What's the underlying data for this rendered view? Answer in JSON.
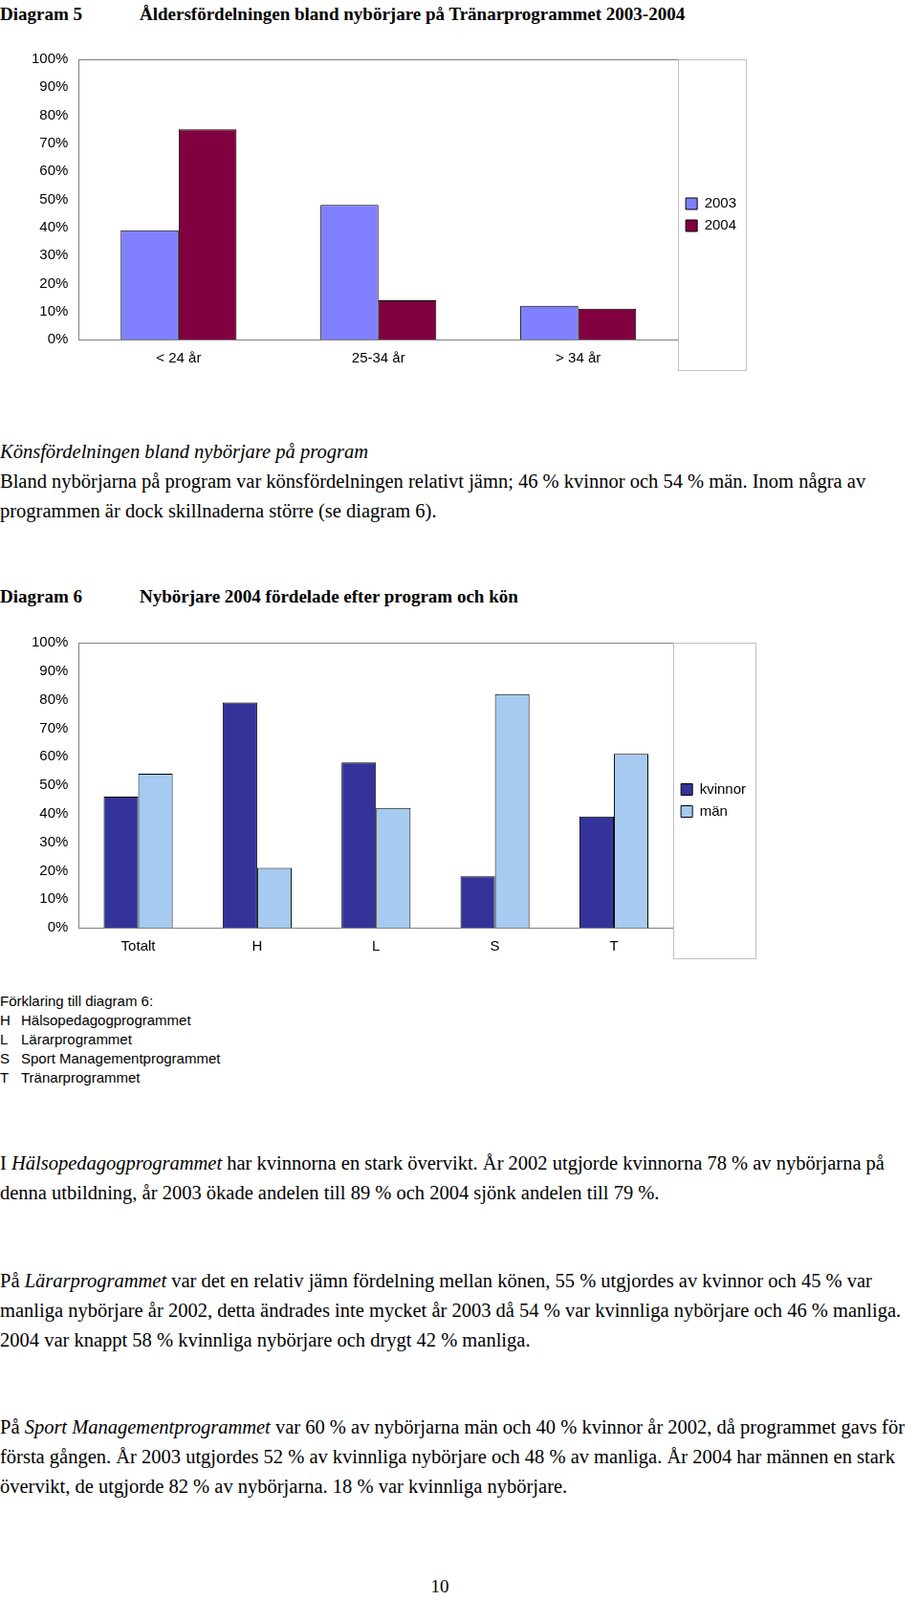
{
  "chart_data": [
    {
      "label": "Diagram 5",
      "type": "bar",
      "title": "Åldersfördelningen bland nybörjare på Tränarprogrammet 2003-2004",
      "categories": [
        "< 24 år",
        "25-34 år",
        "> 34 år"
      ],
      "series": [
        {
          "name": "2003",
          "color": "#8080ff",
          "values": [
            39,
            48,
            12
          ]
        },
        {
          "name": "2004",
          "color": "#800040",
          "values": [
            75,
            14,
            11
          ]
        }
      ],
      "ylim": [
        0,
        100
      ],
      "yticks": [
        {
          "value": 0,
          "label": "0%"
        },
        {
          "value": 10,
          "label": "10%"
        },
        {
          "value": 20,
          "label": "20%"
        },
        {
          "value": 30,
          "label": "30%"
        },
        {
          "value": 40,
          "label": "40%"
        },
        {
          "value": 50,
          "label": "50%"
        },
        {
          "value": 60,
          "label": "60%"
        },
        {
          "value": 70,
          "label": "70%"
        },
        {
          "value": 80,
          "label": "80%"
        },
        {
          "value": 90,
          "label": "90%"
        },
        {
          "value": 100,
          "label": "100%"
        }
      ],
      "grid": false,
      "legend": "right"
    },
    {
      "label": "Diagram 6",
      "type": "bar",
      "title": "Nybörjare 2004 fördelade efter program och kön",
      "categories": [
        "Totalt",
        "H",
        "L",
        "S",
        "T"
      ],
      "series": [
        {
          "name": "kvinnor",
          "color": "#333399",
          "values": [
            46,
            79,
            58,
            18,
            39
          ]
        },
        {
          "name": "män",
          "color": "#a6caf0",
          "values": [
            54,
            21,
            42,
            82,
            61
          ]
        }
      ],
      "ylim": [
        0,
        100
      ],
      "yticks": [
        {
          "value": 0,
          "label": "0%"
        },
        {
          "value": 10,
          "label": "10%"
        },
        {
          "value": 20,
          "label": "20%"
        },
        {
          "value": 30,
          "label": "30%"
        },
        {
          "value": 40,
          "label": "40%"
        },
        {
          "value": 50,
          "label": "50%"
        },
        {
          "value": 60,
          "label": "60%"
        },
        {
          "value": 70,
          "label": "70%"
        },
        {
          "value": 80,
          "label": "80%"
        },
        {
          "value": 90,
          "label": "90%"
        },
        {
          "value": 100,
          "label": "100%"
        }
      ],
      "grid": false,
      "legend": "right"
    }
  ],
  "document": {
    "intro": {
      "heading": "Könsfördelningen bland nybörjare på program",
      "text": "Bland nybörjarna på program var könsfördelningen relativt jämn; 46 % kvinnor och 54 % män. Inom några av programmen är dock skillnaderna större (se diagram 6)."
    },
    "explanation": {
      "heading": "Förklaring till diagram 6:",
      "items": [
        {
          "code": "H",
          "name": "Hälsopedagogprogrammet"
        },
        {
          "code": "L",
          "name": "Lärarprogrammet"
        },
        {
          "code": "S",
          "name": "Sport Managementprogrammet"
        },
        {
          "code": "T",
          "name": "Tränarprogrammet"
        }
      ]
    },
    "paragraphs": [
      [
        "I ",
        {
          "em": "Hälsopedagogprogrammet"
        },
        " har kvinnorna en stark övervikt. År 2002 utgjorde kvinnorna 78 % av nybörjarna på denna utbildning, år 2003 ökade andelen till 89 % och 2004 sjönk andelen till 79 %."
      ],
      [
        "På ",
        {
          "em": "Lärarprogrammet"
        },
        " var det en relativ jämn fördelning mellan könen, 55 % utgjordes av kvinnor och 45 % var manliga nybörjare år 2002, detta ändrades inte mycket år 2003 då 54 % var kvinnliga nybörjare och 46 % manliga. 2004 var knappt 58 % kvinnliga nybörjare och drygt 42 % manliga."
      ],
      [
        "På ",
        {
          "em": "Sport Managementprogrammet"
        },
        " var 60 % av nybörjarna män och 40 % kvinnor år 2002, då programmet gavs för första gången. År 2003 utgjordes 52 % av kvinnliga nybörjare och 48 % av manliga. År 2004 har männen en stark övervikt, de utgjorde 82 % av nybörjarna. 18 % var kvinnliga nybörjare."
      ]
    ],
    "page_number": "10"
  }
}
